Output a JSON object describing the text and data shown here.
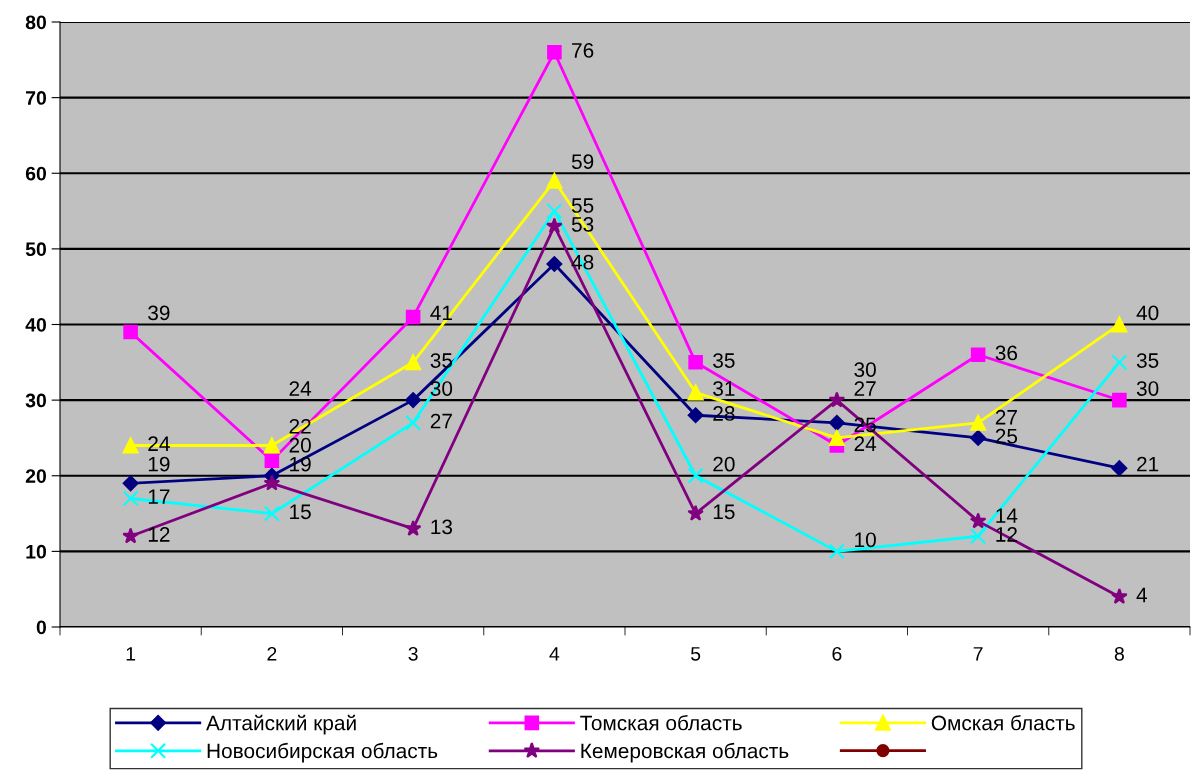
{
  "chart_data": {
    "type": "line",
    "categories": [
      "1",
      "2",
      "3",
      "4",
      "5",
      "6",
      "7",
      "8"
    ],
    "series": [
      {
        "name": "Алтайский край",
        "color": "#000080",
        "marker": "diamond",
        "values": [
          19,
          20,
          30,
          48,
          28,
          27,
          25,
          21
        ]
      },
      {
        "name": "Томская область",
        "color": "#ff00ff",
        "marker": "square",
        "values": [
          39,
          22,
          41,
          76,
          35,
          24,
          36,
          30
        ]
      },
      {
        "name": "Омская бласть",
        "color": "#ffff00",
        "marker": "triangle",
        "values": [
          24,
          24,
          35,
          59,
          31,
          25,
          27,
          40
        ]
      },
      {
        "name": "Новосибирская область",
        "color": "#00ffff",
        "marker": "cross",
        "values": [
          17,
          15,
          27,
          55,
          20,
          10,
          12,
          35
        ]
      },
      {
        "name": "Кемеровская область",
        "color": "#800080",
        "marker": "star",
        "values": [
          12,
          19,
          13,
          53,
          15,
          30,
          14,
          4
        ]
      },
      {
        "color": "#800000",
        "marker": "circle",
        "values": [
          null,
          null,
          null,
          null,
          null,
          null,
          null,
          null
        ]
      }
    ],
    "ylim": [
      0,
      80
    ],
    "yticks": [
      0,
      10,
      20,
      30,
      40,
      50,
      60,
      70,
      80
    ],
    "grid": "y",
    "legend": "bottom",
    "data_labels": true
  }
}
